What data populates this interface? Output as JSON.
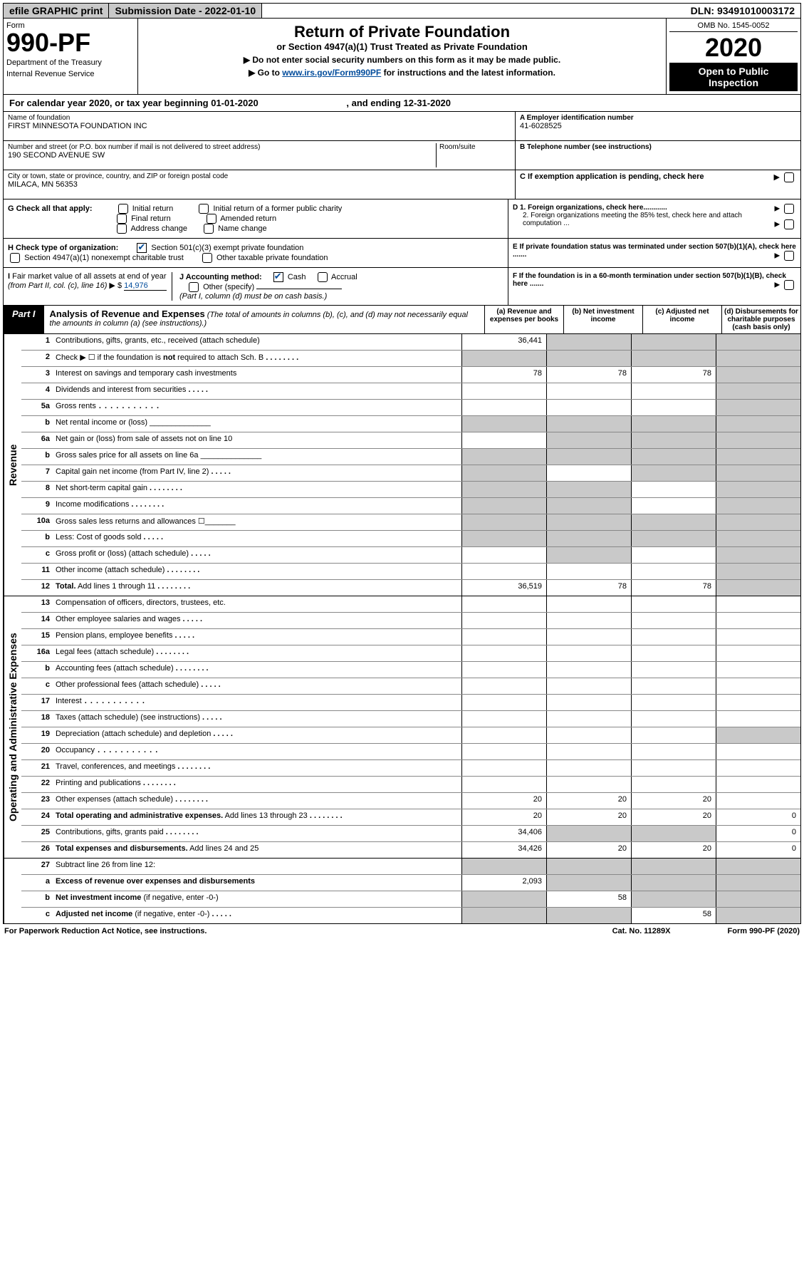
{
  "topbar": {
    "efile": "efile GRAPHIC print",
    "submission": "Submission Date - 2022-01-10",
    "dln": "DLN: 93491010003172"
  },
  "header": {
    "form": "Form",
    "num": "990-PF",
    "dept": "Department of the Treasury",
    "irs": "Internal Revenue Service",
    "title": "Return of Private Foundation",
    "sub": "or Section 4947(a)(1) Trust Treated as Private Foundation",
    "note1": "▶ Do not enter social security numbers on this form as it may be made public.",
    "note2_pre": "▶ Go to ",
    "note2_link": "www.irs.gov/Form990PF",
    "note2_post": " for instructions and the latest information.",
    "omb": "OMB No. 1545-0052",
    "year": "2020",
    "open": "Open to Public Inspection"
  },
  "calyear": {
    "pre": "For calendar year 2020, or tax year beginning 01-01-2020",
    "end": ", and ending 12-31-2020"
  },
  "info": {
    "name_lbl": "Name of foundation",
    "name": "FIRST MINNESOTA FOUNDATION INC",
    "addr_lbl": "Number and street (or P.O. box number if mail is not delivered to street address)",
    "addr": "190 SECOND AVENUE SW",
    "room_lbl": "Room/suite",
    "city_lbl": "City or town, state or province, country, and ZIP or foreign postal code",
    "city": "MILACA, MN  56353",
    "a_lbl": "A Employer identification number",
    "ein": "41-6028525",
    "b_lbl": "B Telephone number (see instructions)",
    "c_lbl": "C If exemption application is pending, check here",
    "d1": "D 1. Foreign organizations, check here............",
    "d2": "2. Foreign organizations meeting the 85% test, check here and attach computation ...",
    "e": "E  If private foundation status was terminated under section 507(b)(1)(A), check here .......",
    "f": "F  If the foundation is in a 60-month termination under section 507(b)(1)(B), check here ......."
  },
  "g": {
    "lbl": "G Check all that apply:",
    "i1": "Initial return",
    "i2": "Final return",
    "i3": "Address change",
    "i4": "Initial return of a former public charity",
    "i5": "Amended return",
    "i6": "Name change"
  },
  "h": {
    "lbl": "H Check type of organization:",
    "h1": "Section 501(c)(3) exempt private foundation",
    "h2": "Section 4947(a)(1) nonexempt charitable trust",
    "h3": "Other taxable private foundation"
  },
  "i": {
    "lbl": "I Fair market value of all assets at end of year (from Part II, col. (c), line 16) ▶ $ ",
    "val": "14,976"
  },
  "j": {
    "lbl": "J Accounting method:",
    "cash": "Cash",
    "accrual": "Accrual",
    "other": "Other (specify)",
    "note": "(Part I, column (d) must be on cash basis.)"
  },
  "part1": {
    "label": "Part I",
    "title": "Analysis of Revenue and Expenses",
    "sub": " (The total of amounts in columns (b), (c), and (d) may not necessarily equal the amounts in column (a) (see instructions).)",
    "colA": "(a)  Revenue and expenses per books",
    "colB": "(b)  Net investment income",
    "colC": "(c)  Adjusted net income",
    "colD": "(d)  Disbursements for charitable purposes (cash basis only)"
  },
  "sidelabels": {
    "rev": "Revenue",
    "exp": "Operating and Administrative Expenses"
  },
  "rows": [
    {
      "n": "1",
      "d": "Contributions, gifts, grants, etc., received (attach schedule)",
      "a": "36,441",
      "b": "g",
      "c": "g",
      "dd": "g"
    },
    {
      "n": "2",
      "d": "Check ▶ ☐ if the foundation is <b>not</b> required to attach Sch. B",
      "dots": "med",
      "a": "g",
      "b": "g",
      "c": "g",
      "dd": "g"
    },
    {
      "n": "3",
      "d": "Interest on savings and temporary cash investments",
      "a": "78",
      "b": "78",
      "c": "78",
      "dd": "g"
    },
    {
      "n": "4",
      "d": "Dividends and interest from securities",
      "dots": "short",
      "a": "",
      "b": "",
      "c": "",
      "dd": "g"
    },
    {
      "n": "5a",
      "d": "Gross rents",
      "dots": "long",
      "a": "",
      "b": "",
      "c": "",
      "dd": "g"
    },
    {
      "n": "b",
      "d": "Net rental income or (loss)  ______________",
      "a": "g",
      "b": "g",
      "c": "g",
      "dd": "g"
    },
    {
      "n": "6a",
      "d": "Net gain or (loss) from sale of assets not on line 10",
      "a": "",
      "b": "g",
      "c": "g",
      "dd": "g"
    },
    {
      "n": "b",
      "d": "Gross sales price for all assets on line 6a ______________",
      "a": "g",
      "b": "g",
      "c": "g",
      "dd": "g"
    },
    {
      "n": "7",
      "d": "Capital gain net income (from Part IV, line 2)",
      "dots": "short",
      "a": "g",
      "b": "",
      "c": "g",
      "dd": "g"
    },
    {
      "n": "8",
      "d": "Net short-term capital gain",
      "dots": "med",
      "a": "g",
      "b": "g",
      "c": "",
      "dd": "g"
    },
    {
      "n": "9",
      "d": "Income modifications",
      "dots": "med",
      "a": "g",
      "b": "g",
      "c": "",
      "dd": "g"
    },
    {
      "n": "10a",
      "d": "Gross sales less returns and allowances  ☐_______",
      "a": "g",
      "b": "g",
      "c": "g",
      "dd": "g"
    },
    {
      "n": "b",
      "d": "Less: Cost of goods sold",
      "dots": "short",
      "a": "g",
      "b": "g",
      "c": "g",
      "dd": "g"
    },
    {
      "n": "c",
      "d": "Gross profit or (loss) (attach schedule)",
      "dots": "short",
      "a": "",
      "b": "g",
      "c": "",
      "dd": "g"
    },
    {
      "n": "11",
      "d": "Other income (attach schedule)",
      "dots": "med",
      "a": "",
      "b": "",
      "c": "",
      "dd": "g"
    },
    {
      "n": "12",
      "d": "<b>Total.</b> Add lines 1 through 11",
      "dots": "med",
      "a": "36,519",
      "b": "78",
      "c": "78",
      "dd": "g"
    }
  ],
  "rows2": [
    {
      "n": "13",
      "d": "Compensation of officers, directors, trustees, etc.",
      "a": "",
      "b": "",
      "c": "",
      "dd": ""
    },
    {
      "n": "14",
      "d": "Other employee salaries and wages",
      "dots": "short",
      "a": "",
      "b": "",
      "c": "",
      "dd": ""
    },
    {
      "n": "15",
      "d": "Pension plans, employee benefits",
      "dots": "short",
      "a": "",
      "b": "",
      "c": "",
      "dd": ""
    },
    {
      "n": "16a",
      "d": "Legal fees (attach schedule)",
      "dots": "med",
      "a": "",
      "b": "",
      "c": "",
      "dd": ""
    },
    {
      "n": "b",
      "d": "Accounting fees (attach schedule)",
      "dots": "med",
      "a": "",
      "b": "",
      "c": "",
      "dd": ""
    },
    {
      "n": "c",
      "d": "Other professional fees (attach schedule)",
      "dots": "short",
      "a": "",
      "b": "",
      "c": "",
      "dd": ""
    },
    {
      "n": "17",
      "d": "Interest",
      "dots": "long",
      "a": "",
      "b": "",
      "c": "",
      "dd": ""
    },
    {
      "n": "18",
      "d": "Taxes (attach schedule) (see instructions)",
      "dots": "short",
      "a": "",
      "b": "",
      "c": "",
      "dd": ""
    },
    {
      "n": "19",
      "d": "Depreciation (attach schedule) and depletion",
      "dots": "short",
      "a": "",
      "b": "",
      "c": "",
      "dd": "g"
    },
    {
      "n": "20",
      "d": "Occupancy",
      "dots": "long",
      "a": "",
      "b": "",
      "c": "",
      "dd": ""
    },
    {
      "n": "21",
      "d": "Travel, conferences, and meetings",
      "dots": "med",
      "a": "",
      "b": "",
      "c": "",
      "dd": ""
    },
    {
      "n": "22",
      "d": "Printing and publications",
      "dots": "med",
      "a": "",
      "b": "",
      "c": "",
      "dd": ""
    },
    {
      "n": "23",
      "d": "Other expenses (attach schedule)",
      "dots": "med",
      "a": "20",
      "b": "20",
      "c": "20",
      "dd": ""
    },
    {
      "n": "24",
      "d": "<b>Total operating and administrative expenses.</b> Add lines 13 through 23",
      "dots": "med",
      "a": "20",
      "b": "20",
      "c": "20",
      "dd": "0"
    },
    {
      "n": "25",
      "d": "Contributions, gifts, grants paid",
      "dots": "med",
      "a": "34,406",
      "b": "g",
      "c": "g",
      "dd": "0"
    },
    {
      "n": "26",
      "d": "<b>Total expenses and disbursements.</b> Add lines 24 and 25",
      "a": "34,426",
      "b": "20",
      "c": "20",
      "dd": "0"
    }
  ],
  "rows3": [
    {
      "n": "27",
      "d": "Subtract line 26 from line 12:",
      "a": "g",
      "b": "g",
      "c": "g",
      "dd": "g"
    },
    {
      "n": "a",
      "d": "<b>Excess of revenue over expenses and disbursements</b>",
      "a": "2,093",
      "b": "g",
      "c": "g",
      "dd": "g"
    },
    {
      "n": "b",
      "d": "<b>Net investment income</b> (if negative, enter -0-)",
      "a": "g",
      "b": "58",
      "c": "g",
      "dd": "g"
    },
    {
      "n": "c",
      "d": "<b>Adjusted net income</b> (if negative, enter -0-)",
      "dots": "short",
      "a": "g",
      "b": "g",
      "c": "58",
      "dd": "g"
    }
  ],
  "footer": {
    "left": "For Paperwork Reduction Act Notice, see instructions.",
    "mid": "Cat. No. 11289X",
    "right": "Form 990-PF (2020)"
  }
}
